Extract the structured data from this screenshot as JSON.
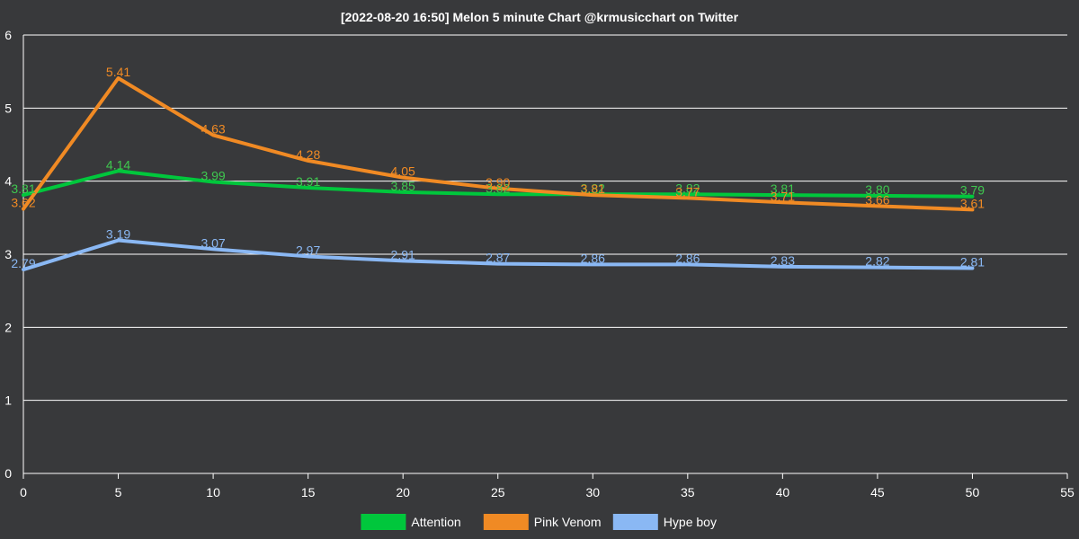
{
  "chart_data": {
    "type": "line",
    "title": "[2022-08-20 16:50]  Melon 5 minute Chart  @krmusicchart on Twitter",
    "xlabel": "",
    "ylabel": "",
    "x": [
      0,
      5,
      10,
      15,
      20,
      25,
      30,
      35,
      40,
      45,
      50
    ],
    "xlim": [
      0,
      55
    ],
    "ylim": [
      0,
      6
    ],
    "xticks": [
      "0",
      "5",
      "10",
      "15",
      "20",
      "25",
      "30",
      "35",
      "40",
      "45",
      "50",
      "55"
    ],
    "yticks": [
      "0",
      "1",
      "2",
      "3",
      "4",
      "5",
      "6"
    ],
    "grid": "horizontal",
    "legend_position": "bottom",
    "series": [
      {
        "name": "Attention",
        "color": "#00c73c",
        "label_color": "#3fc84f",
        "values": [
          3.81,
          4.14,
          3.99,
          3.91,
          3.85,
          3.82,
          3.82,
          3.82,
          3.81,
          3.8,
          3.79
        ],
        "labels": [
          "3.81",
          "4.14",
          "3.99",
          "3.91",
          "3.85",
          "3.82",
          "3.82",
          "3.82",
          "3.81",
          "3.80",
          "3.79"
        ]
      },
      {
        "name": "Pink Venom",
        "color": "#f08a24",
        "label_color": "#f08a24",
        "values": [
          3.62,
          5.41,
          4.63,
          4.28,
          4.05,
          3.9,
          3.81,
          3.77,
          3.71,
          3.66,
          3.61
        ],
        "labels": [
          "3.62",
          "5.41",
          "4.63",
          "4.28",
          "4.05",
          "3.90",
          "3.81",
          "3.77",
          "3.71",
          "3.66",
          "3.61"
        ]
      },
      {
        "name": "Hype boy",
        "color": "#8ab8f4",
        "label_color": "#8ab8f4",
        "values": [
          2.79,
          3.19,
          3.07,
          2.97,
          2.91,
          2.87,
          2.86,
          2.86,
          2.83,
          2.82,
          2.81
        ],
        "labels": [
          "2.79",
          "3.19",
          "3.07",
          "2.97",
          "2.91",
          "2.87",
          "2.86",
          "2.86",
          "2.83",
          "2.82",
          "2.81"
        ]
      }
    ]
  }
}
